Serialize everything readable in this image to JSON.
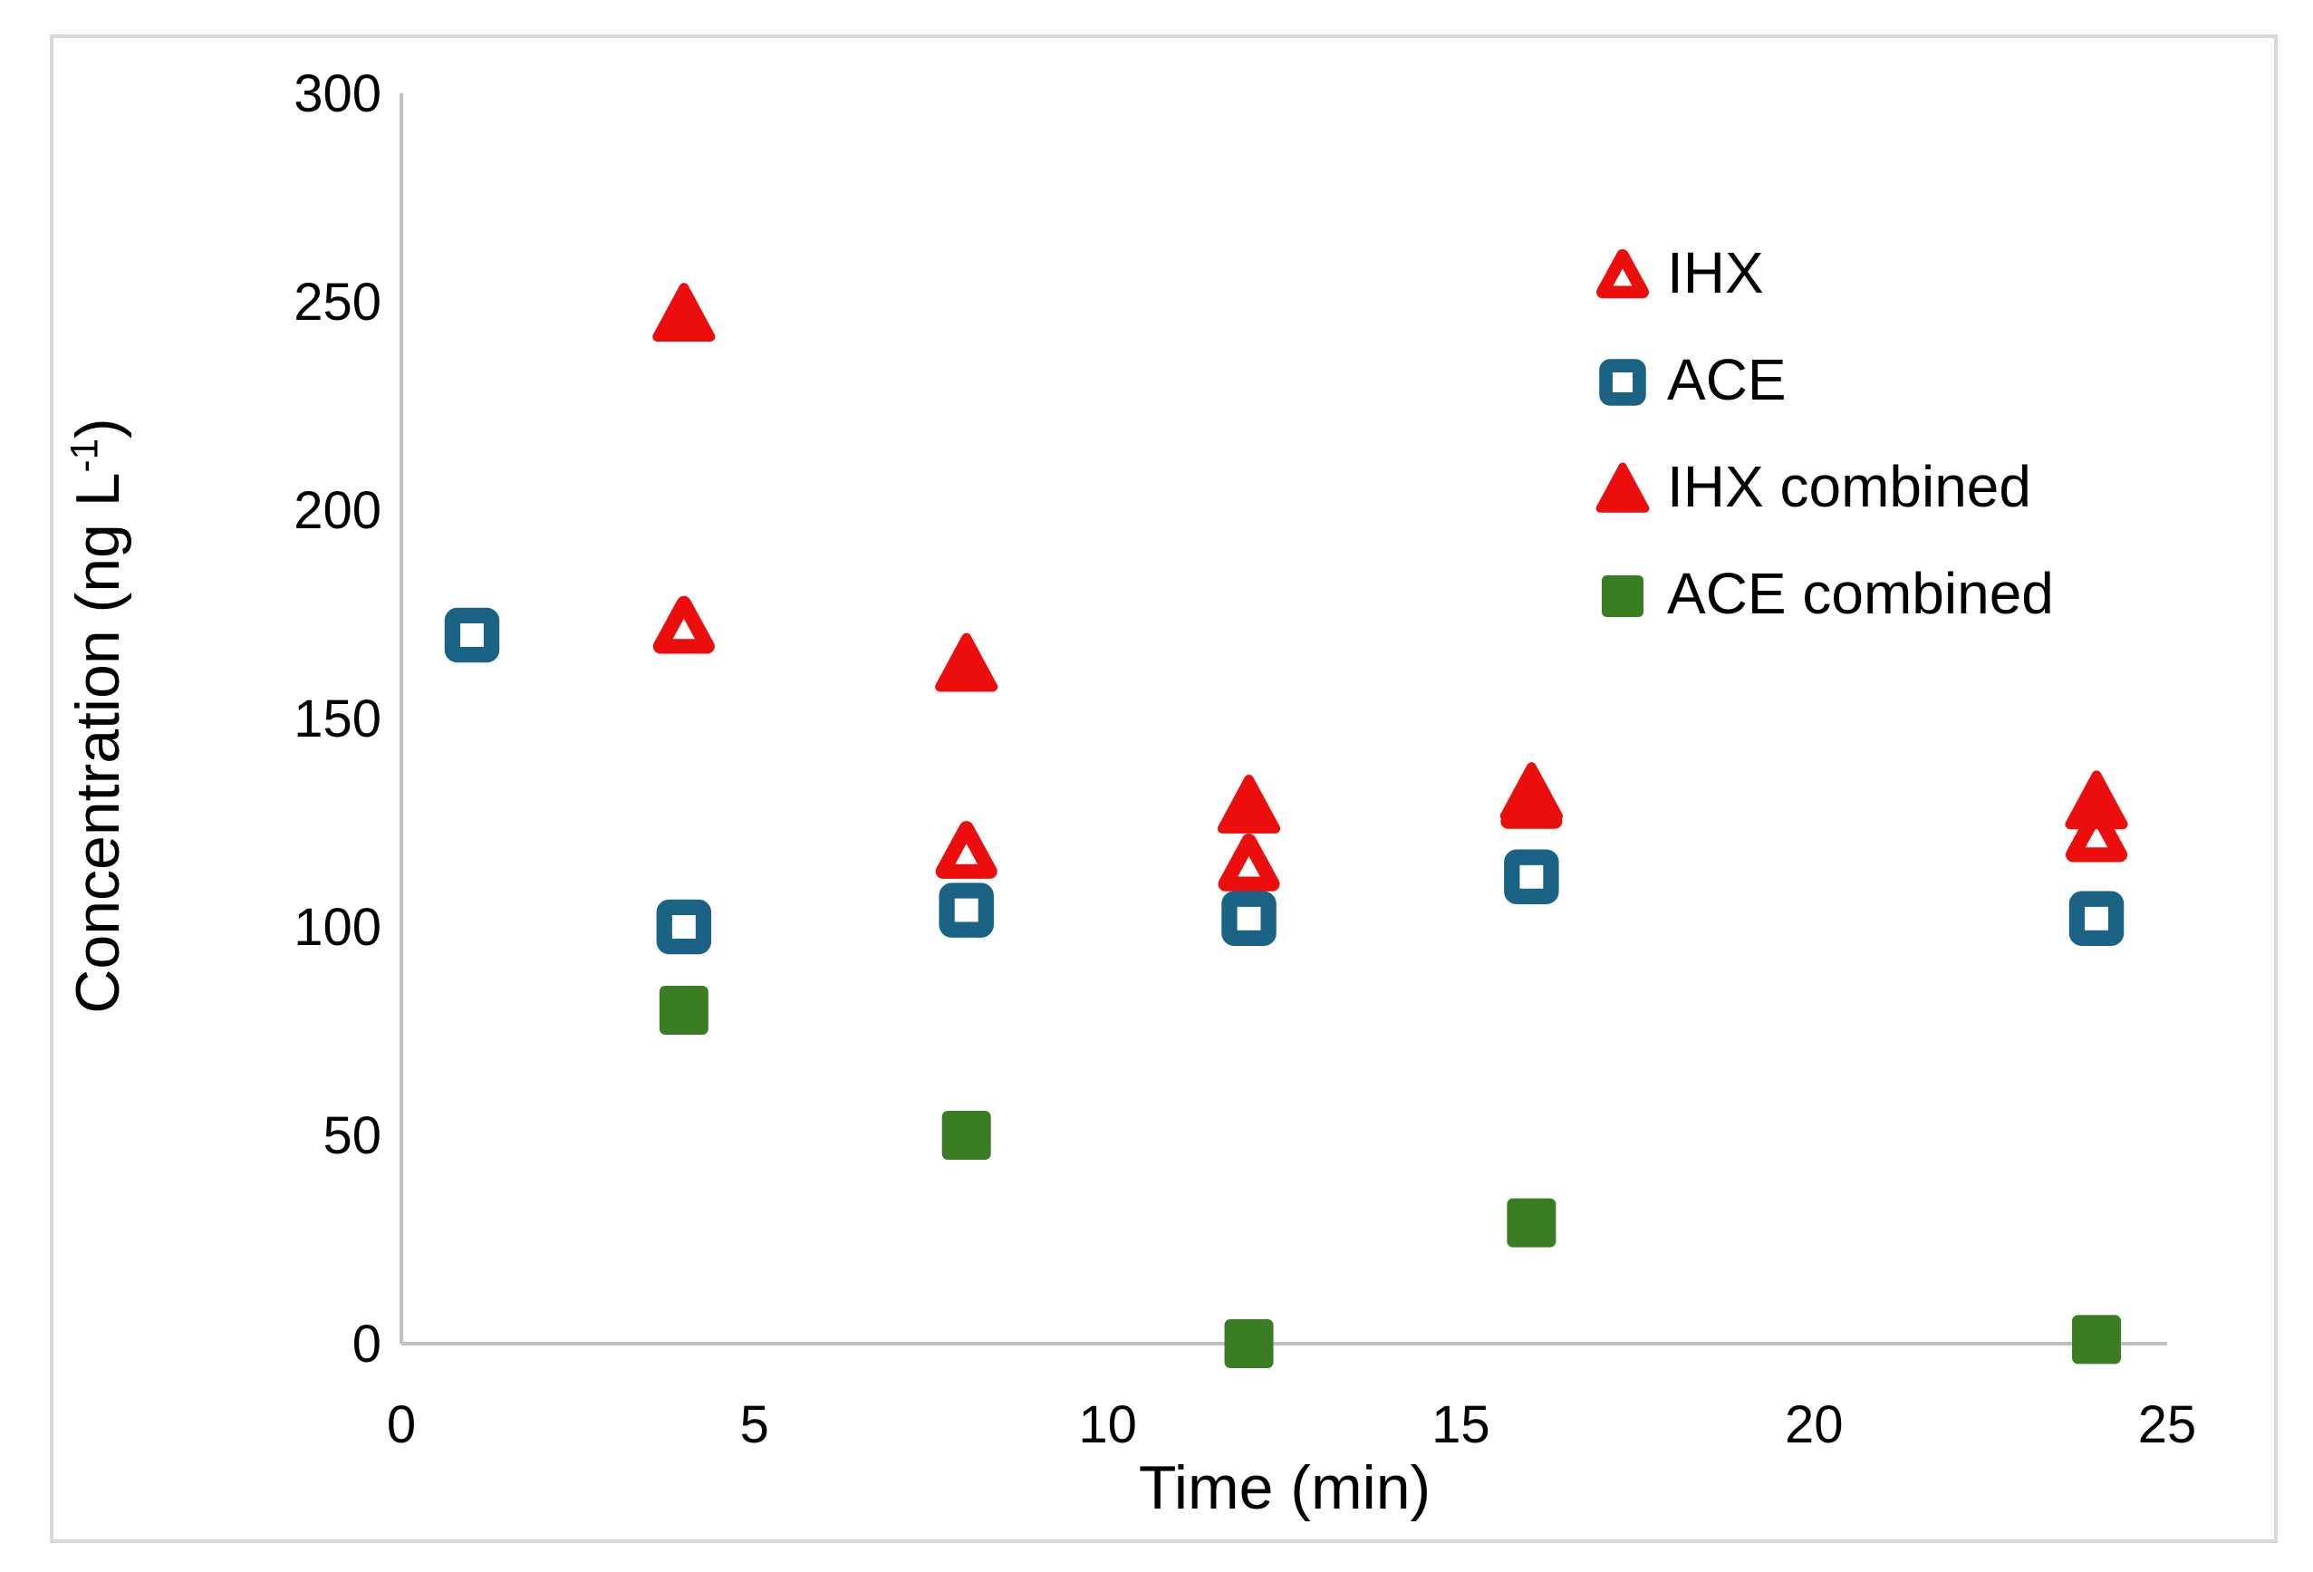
{
  "chart_data": {
    "type": "scatter",
    "title": "",
    "xlabel": "Time (min)",
    "ylabel_main": "Concentration (ng L",
    "ylabel_sup": "-1",
    "ylabel_end": ")",
    "xlim": [
      0,
      25
    ],
    "ylim": [
      0,
      300
    ],
    "x_ticks": [
      0,
      5,
      10,
      15,
      20,
      25
    ],
    "y_ticks": [
      0,
      50,
      100,
      150,
      200,
      250,
      300
    ],
    "grid": false,
    "legend_position": "upper-right-inside",
    "axis_color": "#BFBFBF",
    "border_color": "#D9D9D9",
    "text_color": "#000000",
    "series": [
      {
        "name": "IHX",
        "marker": "triangle-open",
        "color": "#EC0D0D",
        "points": [
          [
            4,
            172
          ],
          [
            8,
            118
          ],
          [
            12,
            115
          ],
          [
            16,
            130
          ],
          [
            24,
            122
          ]
        ]
      },
      {
        "name": "ACE",
        "marker": "square-open",
        "color": "#1A6384",
        "points": [
          [
            1,
            170
          ],
          [
            4,
            100
          ],
          [
            8,
            104
          ],
          [
            12,
            102
          ],
          [
            16,
            112
          ],
          [
            24,
            102
          ]
        ]
      },
      {
        "name": "IHX combined",
        "marker": "triangle-filled",
        "color": "#EC0D0D",
        "points": [
          [
            4,
            247
          ],
          [
            8,
            163
          ],
          [
            12,
            129
          ],
          [
            16,
            132
          ],
          [
            24,
            130
          ]
        ]
      },
      {
        "name": "ACE combined",
        "marker": "square-filled",
        "color": "#3B7D22",
        "points": [
          [
            4,
            80
          ],
          [
            8,
            50
          ],
          [
            12,
            0
          ],
          [
            16,
            29
          ],
          [
            24,
            1
          ]
        ]
      }
    ]
  }
}
